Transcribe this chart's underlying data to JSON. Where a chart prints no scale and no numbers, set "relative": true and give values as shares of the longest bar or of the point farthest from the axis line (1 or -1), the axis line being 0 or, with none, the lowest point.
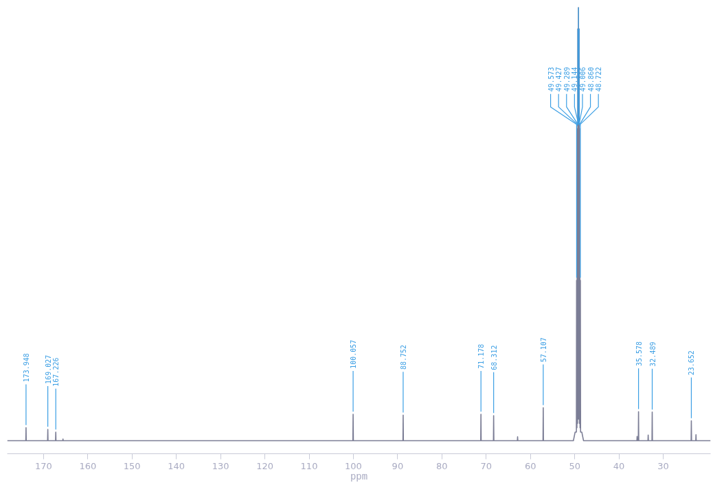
{
  "chart_data": {
    "type": "line",
    "relative": true,
    "xlabel": "ppm",
    "xlim": [
      178.2,
      19.3
    ],
    "line_style": "solid",
    "xticks": [
      170,
      160,
      150,
      140,
      130,
      120,
      110,
      100,
      90,
      80,
      70,
      60,
      50,
      40,
      30
    ],
    "series": [
      {
        "color": "#7b7d95",
        "x": [
          178.2,
          174.0,
          173.948,
          173.9,
          169.08,
          169.027,
          168.98,
          167.28,
          167.226,
          167.18,
          165.65,
          165.6,
          165.55,
          100.11,
          100.057,
          100.0,
          88.8,
          88.752,
          88.7,
          71.23,
          71.178,
          71.13,
          68.36,
          68.312,
          68.26,
          62.95,
          62.9,
          62.85,
          57.16,
          57.107,
          57.06,
          50.3,
          49.9,
          49.62,
          49.573,
          49.5,
          49.427,
          49.36,
          49.289,
          49.22,
          49.144,
          49.07,
          49.006,
          48.93,
          48.86,
          48.79,
          48.722,
          48.67,
          48.4,
          48.0,
          35.95,
          35.9,
          35.85,
          35.63,
          35.578,
          35.53,
          33.45,
          33.4,
          33.35,
          32.54,
          32.489,
          32.44,
          23.7,
          23.652,
          23.6,
          22.65,
          22.6,
          22.55,
          19.3
        ],
        "values": [
          0,
          0,
          0.03,
          0,
          0,
          0.026,
          0,
          0,
          0.02,
          0,
          0,
          0.004,
          0,
          0,
          0.061,
          0,
          0,
          0.059,
          0,
          0,
          0.061,
          0,
          0,
          0.058,
          0,
          0,
          0.009,
          0,
          0,
          0.076,
          0,
          0,
          0.02,
          0.02,
          0.37,
          0.03,
          0.72,
          0.04,
          0.95,
          0.05,
          1,
          0.05,
          0.95,
          0.04,
          0.72,
          0.03,
          0.37,
          0.02,
          0.02,
          0,
          0,
          0.01,
          0,
          0,
          0.067,
          0,
          0,
          0.013,
          0,
          0,
          0.066,
          0,
          0,
          0.046,
          0,
          0,
          0.014,
          0,
          0
        ]
      }
    ],
    "annotations": [
      {
        "text": "173.948",
        "x": 173.948,
        "y": 0.03
      },
      {
        "text": "169.027",
        "x": 169.027,
        "y": 0.026
      },
      {
        "text": "167.226",
        "x": 167.226,
        "y": 0.02
      },
      {
        "text": "100.057",
        "x": 100.057,
        "y": 0.061
      },
      {
        "text": "88.752",
        "x": 88.752,
        "y": 0.059
      },
      {
        "text": "71.178",
        "x": 71.178,
        "y": 0.061
      },
      {
        "text": "68.312",
        "x": 68.312,
        "y": 0.058
      },
      {
        "text": "57.107",
        "x": 57.107,
        "y": 0.076
      },
      {
        "text": "49.573",
        "x": 49.573,
        "y": 0.37
      },
      {
        "text": "49.427",
        "x": 49.427,
        "y": 0.72
      },
      {
        "text": "49.289",
        "x": 49.289,
        "y": 0.95
      },
      {
        "text": "49.144",
        "x": 49.144,
        "y": 1
      },
      {
        "text": "49.006",
        "x": 49.006,
        "y": 0.95
      },
      {
        "text": "48.860",
        "x": 48.86,
        "y": 0.72
      },
      {
        "text": "48.722",
        "x": 48.722,
        "y": 0.37
      },
      {
        "text": "35.578",
        "x": 35.578,
        "y": 0.067
      },
      {
        "text": "32.489",
        "x": 32.489,
        "y": 0.066
      },
      {
        "text": "23.652",
        "x": 23.652,
        "y": 0.046
      }
    ]
  }
}
